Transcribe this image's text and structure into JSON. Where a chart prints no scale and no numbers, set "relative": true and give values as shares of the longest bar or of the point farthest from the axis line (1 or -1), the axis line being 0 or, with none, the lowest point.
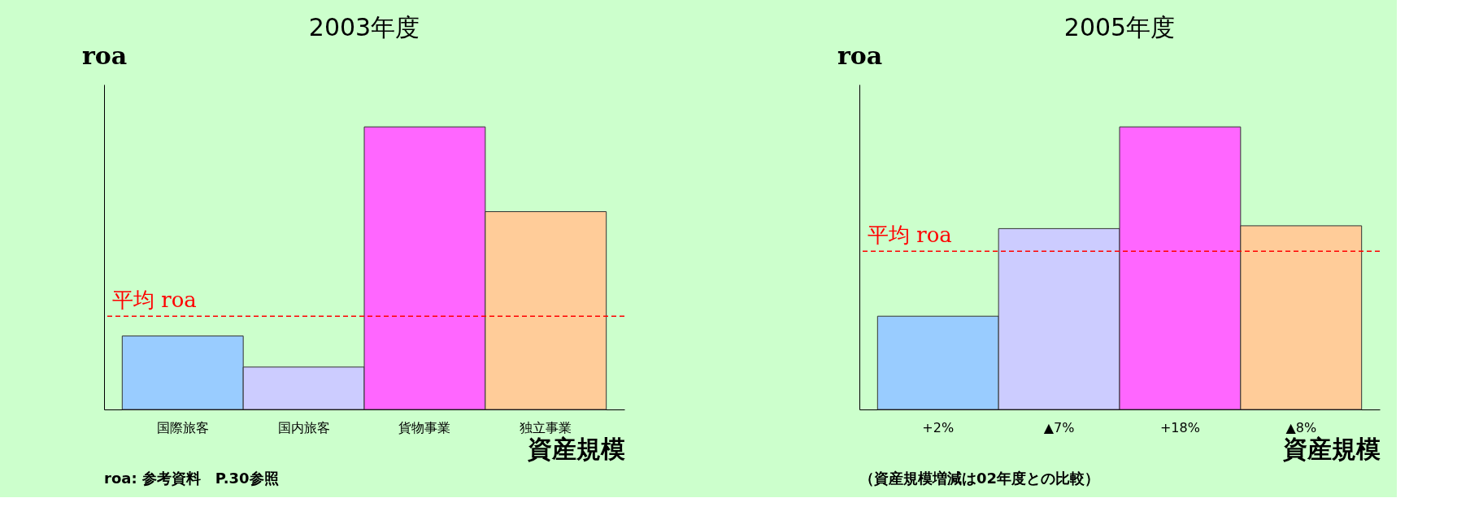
{
  "chart_data": [
    {
      "type": "bar",
      "title": "2003年度",
      "xlabel": "資産規模",
      "ylabel": "roa",
      "relative": true,
      "categories": [
        "国際旅客",
        "国内旅客",
        "貨物事業",
        "独立事業"
      ],
      "values": [
        0.26,
        0.15,
        1,
        0.7
      ],
      "colors": [
        "#99ccff",
        "#ccccff",
        "#ff66ff",
        "#ffcc99"
      ],
      "ref_lines": [
        {
          "axis": "y",
          "value": 0.33,
          "label": "平均 roa",
          "color": "#ff0000",
          "line_style": "dashed"
        }
      ],
      "annotations": [
        "roa: 参考資料　P.30参照"
      ]
    },
    {
      "type": "bar",
      "title": "2005年度",
      "xlabel": "資産規模",
      "ylabel": "roa",
      "relative": true,
      "categories": [
        "+2%",
        "▲7%",
        "+18%",
        "▲8%"
      ],
      "values": [
        0.33,
        0.64,
        1,
        0.65
      ],
      "colors": [
        "#99ccff",
        "#ccccff",
        "#ff66ff",
        "#ffcc99"
      ],
      "ref_lines": [
        {
          "axis": "y",
          "value": 0.56,
          "label": "平均 roa",
          "color": "#ff0000",
          "line_style": "dashed"
        }
      ],
      "annotations": [
        "（資産規模増減は02年度との比較）"
      ]
    }
  ]
}
